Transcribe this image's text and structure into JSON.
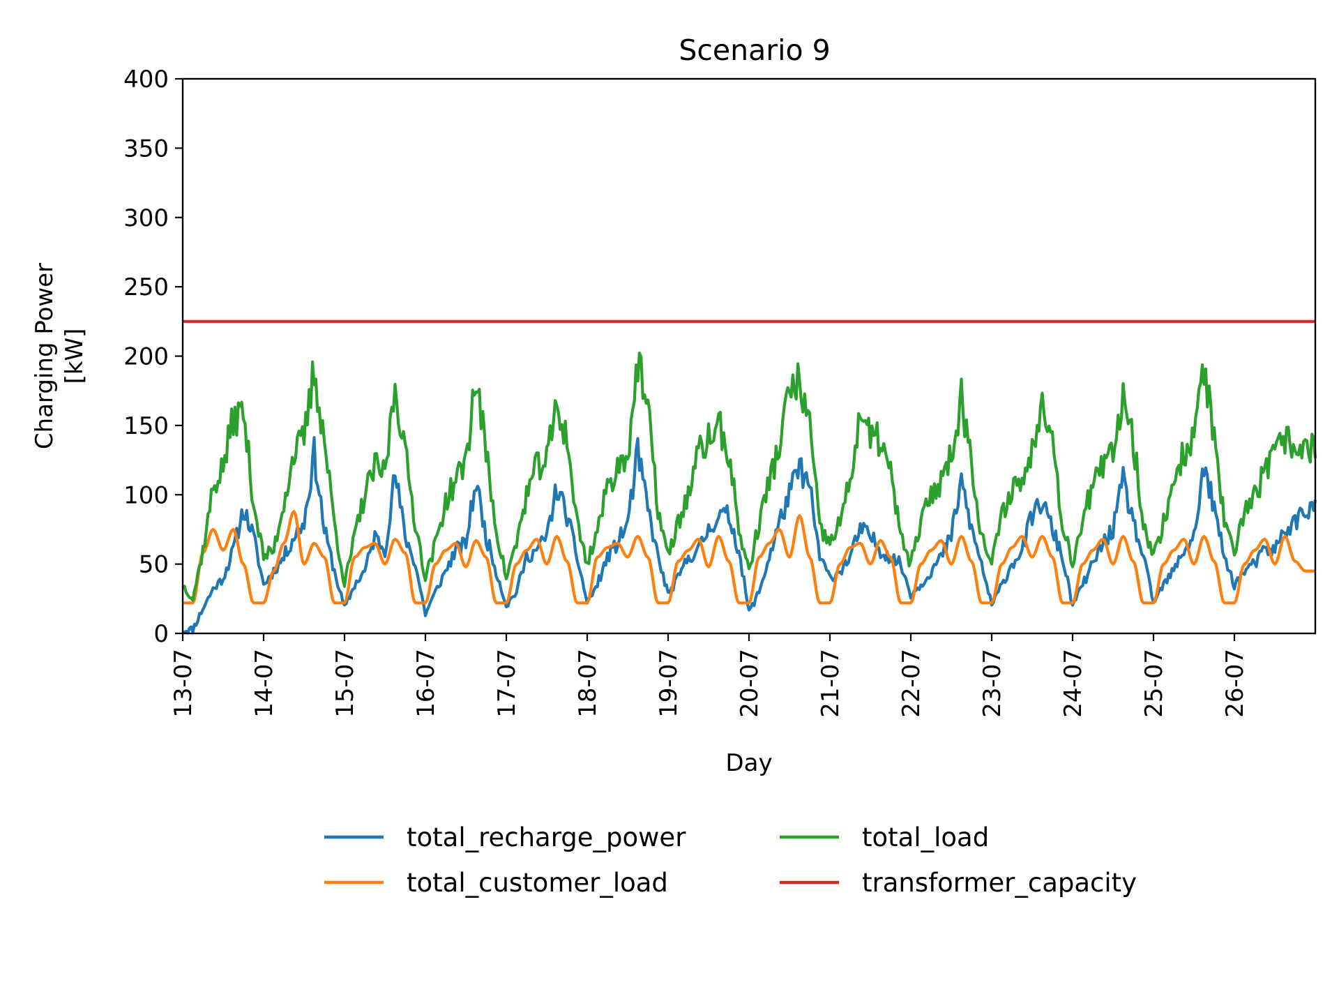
{
  "chart_data": {
    "type": "line",
    "title": "Scenario 9",
    "xlabel": "Day",
    "ylabel_lines": [
      "Charging Power",
      "[kW]"
    ],
    "ylim": [
      0,
      400
    ],
    "yticks": [
      0,
      50,
      100,
      150,
      200,
      250,
      300,
      350,
      400
    ],
    "x_domain": [
      "13-07",
      "27-07 23:00"
    ],
    "xticks": [
      "13-07",
      "14-07",
      "15-07",
      "16-07",
      "17-07",
      "18-07",
      "19-07",
      "20-07",
      "21-07",
      "22-07",
      "23-07",
      "24-07",
      "25-07",
      "26-07"
    ],
    "grid": false,
    "legend_placement": "below",
    "series": [
      {
        "name": "total_recharge_power",
        "color": "#1f77b4",
        "description_per_day_hours": [
          0,
          3,
          6,
          9,
          12,
          15,
          18,
          21
        ],
        "values": [
          [
            2,
            3,
            18,
            32,
            40,
            60,
            90,
            70
          ],
          [
            35,
            45,
            55,
            70,
            80,
            130,
            75,
            45
          ],
          [
            18,
            35,
            45,
            70,
            60,
            115,
            70,
            50
          ],
          [
            14,
            30,
            45,
            60,
            65,
            110,
            70,
            45
          ],
          [
            20,
            30,
            55,
            60,
            70,
            105,
            85,
            55
          ],
          [
            22,
            35,
            55,
            65,
            80,
            130,
            90,
            55
          ],
          [
            28,
            40,
            55,
            60,
            75,
            85,
            85,
            60
          ],
          [
            15,
            30,
            55,
            80,
            100,
            120,
            105,
            55
          ],
          [
            40,
            45,
            55,
            75,
            70,
            60,
            55,
            50
          ],
          [
            28,
            35,
            45,
            55,
            70,
            110,
            75,
            50
          ],
          [
            20,
            35,
            50,
            60,
            85,
            95,
            75,
            55
          ],
          [
            20,
            35,
            50,
            65,
            75,
            110,
            80,
            55
          ],
          [
            22,
            35,
            45,
            60,
            70,
            120,
            90,
            55
          ],
          [
            35,
            45,
            50,
            60,
            60,
            75,
            80,
            90
          ]
        ]
      },
      {
        "name": "total_customer_load",
        "color": "#ff7f0e",
        "description_per_day_hours": [
          0,
          3,
          6,
          9,
          12,
          15,
          18,
          21
        ],
        "values": [
          [
            22,
            22,
            58,
            75,
            60,
            75,
            50,
            22
          ],
          [
            22,
            45,
            65,
            88,
            50,
            65,
            55,
            22
          ],
          [
            22,
            55,
            62,
            65,
            50,
            68,
            58,
            22
          ],
          [
            22,
            50,
            60,
            65,
            48,
            67,
            55,
            22
          ],
          [
            22,
            50,
            60,
            68,
            50,
            70,
            52,
            22
          ],
          [
            22,
            55,
            62,
            65,
            55,
            70,
            55,
            22
          ],
          [
            22,
            52,
            60,
            68,
            48,
            70,
            52,
            22
          ],
          [
            22,
            55,
            65,
            75,
            55,
            85,
            55,
            22
          ],
          [
            22,
            50,
            62,
            65,
            50,
            67,
            55,
            22
          ],
          [
            22,
            50,
            60,
            67,
            50,
            70,
            52,
            22
          ],
          [
            22,
            50,
            62,
            70,
            55,
            70,
            55,
            22
          ],
          [
            22,
            50,
            60,
            68,
            50,
            70,
            52,
            22
          ],
          [
            22,
            50,
            60,
            68,
            50,
            70,
            52,
            22
          ],
          [
            22,
            50,
            60,
            68,
            50,
            70,
            52,
            45
          ]
        ]
      },
      {
        "name": "total_load",
        "color": "#2ca02c",
        "description_per_day_hours": [
          0,
          3,
          6,
          9,
          12,
          15,
          18,
          21
        ],
        "values": [
          [
            35,
            25,
            60,
            105,
            120,
            155,
            160,
            95
          ],
          [
            55,
            60,
            95,
            130,
            140,
            190,
            140,
            80
          ],
          [
            35,
            70,
            100,
            120,
            115,
            180,
            130,
            80
          ],
          [
            40,
            65,
            95,
            110,
            125,
            185,
            130,
            75
          ],
          [
            40,
            65,
            100,
            120,
            125,
            165,
            140,
            80
          ],
          [
            50,
            75,
            105,
            120,
            130,
            195,
            160,
            90
          ],
          [
            55,
            80,
            100,
            130,
            140,
            150,
            130,
            75
          ],
          [
            45,
            80,
            110,
            135,
            175,
            180,
            150,
            75
          ],
          [
            65,
            80,
            110,
            160,
            140,
            140,
            115,
            70
          ],
          [
            50,
            80,
            100,
            110,
            130,
            170,
            125,
            70
          ],
          [
            50,
            85,
            105,
            110,
            130,
            175,
            140,
            80
          ],
          [
            50,
            85,
            105,
            120,
            130,
            175,
            140,
            80
          ],
          [
            55,
            80,
            110,
            130,
            140,
            195,
            140,
            80
          ],
          [
            55,
            90,
            100,
            115,
            130,
            140,
            135,
            135
          ]
        ]
      },
      {
        "name": "transformer_capacity",
        "color": "#d62728",
        "values": [
          225,
          225
        ]
      }
    ]
  }
}
